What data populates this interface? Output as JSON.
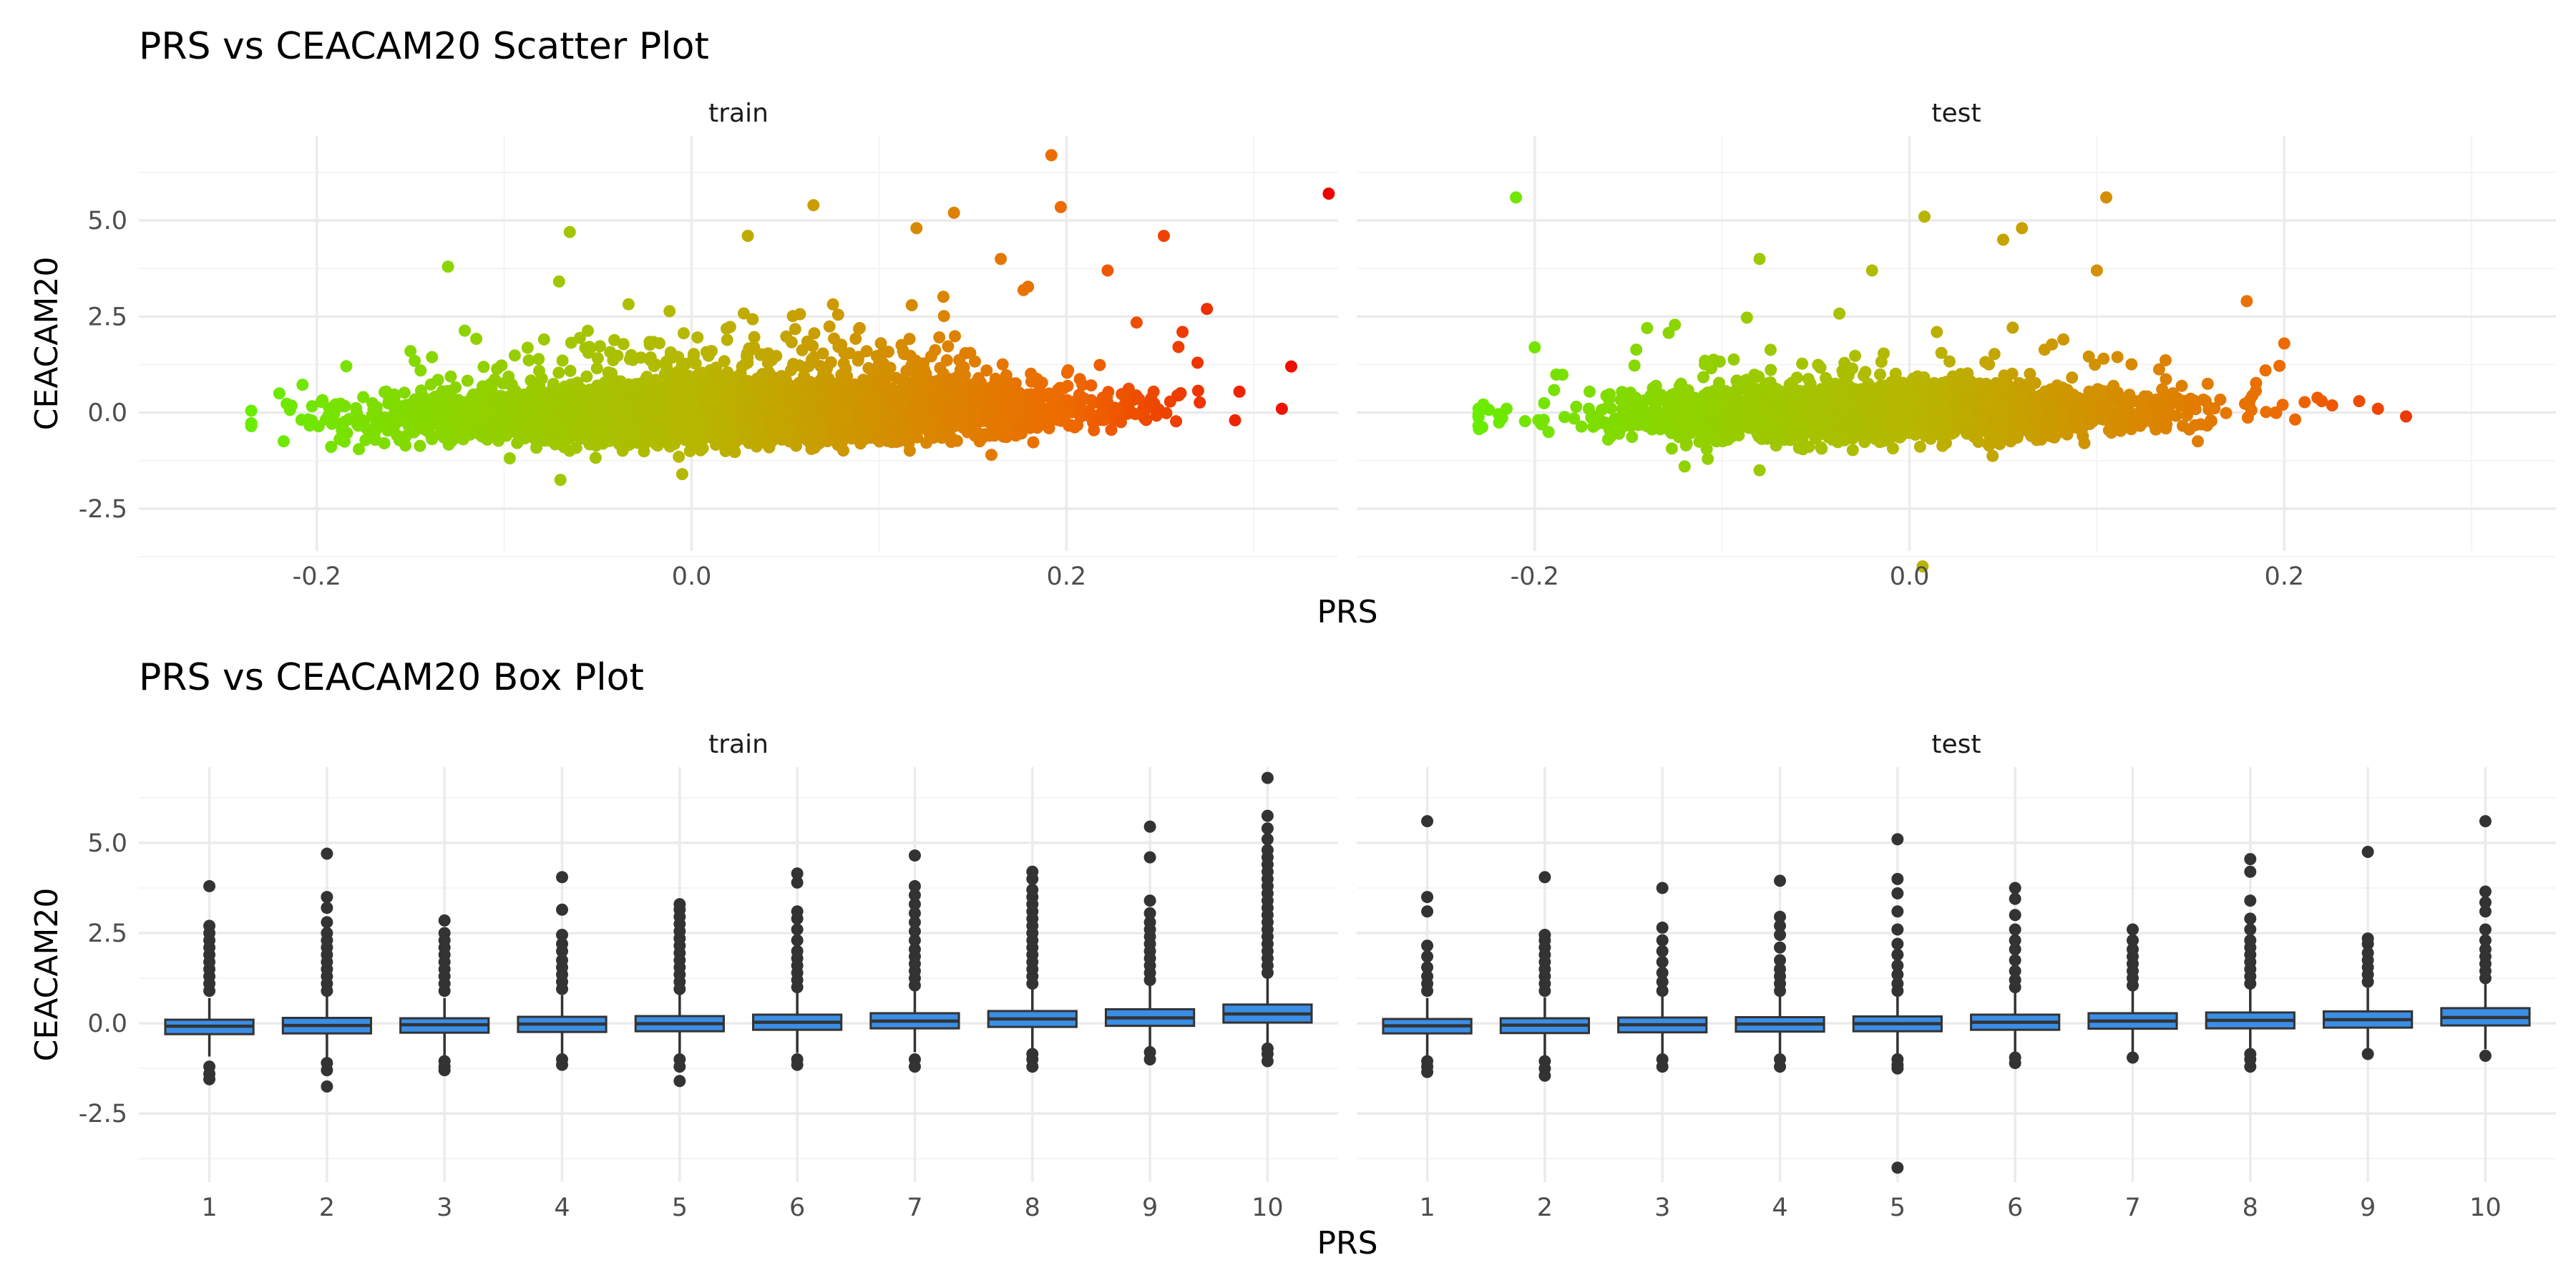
{
  "colors": {
    "grid_major": "#ebebeb",
    "grid_minor": "#f4f4f4",
    "gradient_low": "#66ee00",
    "gradient_mid": "#b7b700",
    "gradient_high": "#ee6a00",
    "gradient_max": "#ee0000",
    "box_fill": "#3a8ee6",
    "box_line": "#333333",
    "outlier": "#333333"
  },
  "chart_data": [
    {
      "type": "scatter",
      "title": "PRS vs CEACAM20 Scatter Plot",
      "xlabel": "PRS",
      "ylabel": "CEACAM20",
      "xlim": [
        -0.295,
        0.345
      ],
      "ylim": [
        -3.6,
        7.2
      ],
      "x_ticks": [
        -0.2,
        0.0,
        0.2
      ],
      "x_tick_labels": [
        "-0.2",
        "0.0",
        "0.2"
      ],
      "y_ticks": [
        -2.5,
        0.0,
        2.5,
        5.0
      ],
      "y_tick_labels": [
        "-2.5",
        "0.0",
        "2.5",
        "5.0"
      ],
      "grid": true,
      "color_encoding": "gradient by PRS (green → yellow → orange → red)",
      "facets": [
        {
          "label": "train",
          "n_points_approx": 8000,
          "x_range": [
            -0.235,
            0.34
          ],
          "y_center_slope": 2.2,
          "y_spread": 0.32,
          "highlight_points": [
            {
              "x": -0.235,
              "y": -0.35
            },
            {
              "x": -0.22,
              "y": 0.5
            },
            {
              "x": -0.15,
              "y": 1.6
            },
            {
              "x": -0.13,
              "y": 3.8
            },
            {
              "x": -0.065,
              "y": 4.7
            },
            {
              "x": -0.07,
              "y": -1.75
            },
            {
              "x": -0.005,
              "y": -1.6
            },
            {
              "x": 0.03,
              "y": 4.6
            },
            {
              "x": 0.065,
              "y": 5.4
            },
            {
              "x": 0.12,
              "y": 4.8
            },
            {
              "x": 0.14,
              "y": 5.2
            },
            {
              "x": 0.165,
              "y": 4.0
            },
            {
              "x": 0.192,
              "y": 6.7
            },
            {
              "x": 0.197,
              "y": 5.35
            },
            {
              "x": 0.222,
              "y": 3.7
            },
            {
              "x": 0.252,
              "y": 4.6
            },
            {
              "x": 0.262,
              "y": 2.1
            },
            {
              "x": 0.27,
              "y": 1.3
            },
            {
              "x": 0.275,
              "y": 2.7
            },
            {
              "x": 0.29,
              "y": -0.2
            },
            {
              "x": 0.315,
              "y": 0.1
            },
            {
              "x": 0.34,
              "y": 5.7
            },
            {
              "x": 0.16,
              "y": -1.1
            },
            {
              "x": 0.235,
              "y": 0.0
            }
          ]
        },
        {
          "label": "test",
          "n_points_approx": 2600,
          "x_range": [
            -0.23,
            0.27
          ],
          "y_center_slope": 1.5,
          "y_spread": 0.33,
          "highlight_points": [
            {
              "x": -0.23,
              "y": 0.1
            },
            {
              "x": -0.215,
              "y": 0.1
            },
            {
              "x": -0.21,
              "y": 5.6
            },
            {
              "x": -0.2,
              "y": 1.7
            },
            {
              "x": -0.14,
              "y": 2.2
            },
            {
              "x": -0.12,
              "y": -1.4
            },
            {
              "x": -0.08,
              "y": 4.0
            },
            {
              "x": -0.08,
              "y": -1.5
            },
            {
              "x": -0.02,
              "y": 3.7
            },
            {
              "x": 0.008,
              "y": 5.1
            },
            {
              "x": 0.007,
              "y": -4.0
            },
            {
              "x": 0.05,
              "y": 4.5
            },
            {
              "x": 0.06,
              "y": 4.8
            },
            {
              "x": 0.105,
              "y": 5.6
            },
            {
              "x": 0.1,
              "y": 3.7
            },
            {
              "x": 0.18,
              "y": 2.9
            },
            {
              "x": 0.19,
              "y": 1.1
            },
            {
              "x": 0.22,
              "y": 0.3
            },
            {
              "x": 0.24,
              "y": 0.3
            },
            {
              "x": 0.25,
              "y": 0.1
            },
            {
              "x": 0.265,
              "y": -0.1
            },
            {
              "x": 0.2,
              "y": 1.8
            }
          ]
        }
      ]
    },
    {
      "type": "box",
      "title": "PRS vs CEACAM20 Box Plot",
      "xlabel": "PRS",
      "ylabel": "CEACAM20",
      "ylim": [
        -4.4,
        7.1
      ],
      "categories": [
        "1",
        "2",
        "3",
        "4",
        "5",
        "6",
        "7",
        "8",
        "9",
        "10"
      ],
      "y_ticks": [
        -2.5,
        0.0,
        2.5,
        5.0
      ],
      "y_tick_labels": [
        "-2.5",
        "0.0",
        "2.5",
        "5.0"
      ],
      "grid": true,
      "facets": [
        {
          "label": "train",
          "boxes": [
            {
              "q1": -0.3,
              "median": -0.08,
              "q3": 0.1,
              "lower_whisker": -0.92,
              "upper_whisker": 0.7,
              "outliers": [
                -1.2,
                -1.4,
                -1.55,
                0.9,
                1.1,
                1.3,
                1.5,
                1.7,
                1.9,
                2.1,
                2.3,
                2.5,
                2.7,
                3.8
              ]
            },
            {
              "q1": -0.28,
              "median": -0.06,
              "q3": 0.15,
              "lower_whisker": -0.95,
              "upper_whisker": 0.75,
              "outliers": [
                -1.1,
                -1.3,
                -1.75,
                0.9,
                1.1,
                1.3,
                1.5,
                1.7,
                1.9,
                2.1,
                2.3,
                2.5,
                2.8,
                3.2,
                3.5,
                4.7
              ]
            },
            {
              "q1": -0.26,
              "median": -0.04,
              "q3": 0.14,
              "lower_whisker": -0.9,
              "upper_whisker": 0.7,
              "outliers": [
                -1.05,
                -1.2,
                -1.3,
                0.9,
                1.1,
                1.3,
                1.5,
                1.7,
                1.9,
                2.1,
                2.3,
                2.5,
                2.85
              ]
            },
            {
              "q1": -0.24,
              "median": -0.02,
              "q3": 0.18,
              "lower_whisker": -0.88,
              "upper_whisker": 0.78,
              "outliers": [
                -1.0,
                -1.15,
                0.95,
                1.15,
                1.35,
                1.55,
                1.75,
                2.0,
                2.2,
                2.45,
                3.15,
                4.05
              ]
            },
            {
              "q1": -0.22,
              "median": -0.01,
              "q3": 0.2,
              "lower_whisker": -0.86,
              "upper_whisker": 0.8,
              "outliers": [
                -1.0,
                -1.2,
                -1.6,
                0.95,
                1.15,
                1.35,
                1.55,
                1.75,
                1.95,
                2.15,
                2.35,
                2.55,
                2.75,
                2.95,
                3.15,
                3.3
              ]
            },
            {
              "q1": -0.18,
              "median": 0.03,
              "q3": 0.24,
              "lower_whisker": -0.82,
              "upper_whisker": 0.86,
              "outliers": [
                -1.0,
                -1.15,
                1.0,
                1.2,
                1.4,
                1.6,
                1.8,
                2.0,
                2.3,
                2.6,
                2.9,
                3.1,
                3.9,
                4.15
              ]
            },
            {
              "q1": -0.14,
              "median": 0.06,
              "q3": 0.28,
              "lower_whisker": -0.8,
              "upper_whisker": 0.9,
              "outliers": [
                -1.0,
                -1.2,
                1.05,
                1.25,
                1.45,
                1.65,
                1.85,
                2.05,
                2.3,
                2.55,
                2.8,
                3.05,
                3.3,
                3.55,
                3.8,
                4.65
              ]
            },
            {
              "q1": -0.1,
              "median": 0.12,
              "q3": 0.34,
              "lower_whisker": -0.75,
              "upper_whisker": 0.98,
              "outliers": [
                -0.85,
                -1.0,
                -1.2,
                1.1,
                1.3,
                1.5,
                1.7,
                1.9,
                2.1,
                2.3,
                2.5,
                2.7,
                2.9,
                3.1,
                3.3,
                3.5,
                3.7,
                4.0,
                4.2
              ]
            },
            {
              "q1": -0.07,
              "median": 0.15,
              "q3": 0.39,
              "lower_whisker": -0.72,
              "upper_whisker": 1.05,
              "outliers": [
                -0.8,
                -1.0,
                1.2,
                1.4,
                1.6,
                1.8,
                2.0,
                2.2,
                2.4,
                2.6,
                2.8,
                3.05,
                3.4,
                4.6,
                5.45
              ]
            },
            {
              "q1": 0.02,
              "median": 0.26,
              "q3": 0.52,
              "lower_whisker": -0.68,
              "upper_whisker": 1.25,
              "outliers": [
                -0.7,
                -0.85,
                -1.05,
                1.4,
                1.6,
                1.8,
                2.0,
                2.2,
                2.4,
                2.6,
                2.8,
                3.0,
                3.2,
                3.4,
                3.6,
                3.8,
                4.0,
                4.2,
                4.4,
                4.6,
                4.8,
                5.1,
                5.4,
                5.75,
                6.8
              ]
            }
          ]
        },
        {
          "label": "test",
          "boxes": [
            {
              "q1": -0.28,
              "median": -0.07,
              "q3": 0.12,
              "lower_whisker": -0.9,
              "upper_whisker": 0.7,
              "outliers": [
                -1.05,
                -1.2,
                -1.35,
                0.9,
                1.1,
                1.3,
                1.55,
                1.85,
                2.15,
                3.1,
                3.5,
                5.6
              ]
            },
            {
              "q1": -0.27,
              "median": -0.05,
              "q3": 0.14,
              "lower_whisker": -0.9,
              "upper_whisker": 0.72,
              "outliers": [
                -1.05,
                -1.25,
                -1.45,
                0.9,
                1.1,
                1.3,
                1.5,
                1.7,
                1.9,
                2.1,
                2.3,
                2.45,
                4.05
              ]
            },
            {
              "q1": -0.25,
              "median": -0.04,
              "q3": 0.16,
              "lower_whisker": -0.88,
              "upper_whisker": 0.74,
              "outliers": [
                -1.0,
                -1.2,
                0.9,
                1.15,
                1.4,
                1.7,
                2.0,
                2.3,
                2.65,
                3.75
              ]
            },
            {
              "q1": -0.23,
              "median": -0.02,
              "q3": 0.17,
              "lower_whisker": -0.86,
              "upper_whisker": 0.75,
              "outliers": [
                -1.0,
                -1.2,
                0.9,
                1.1,
                1.3,
                1.5,
                1.75,
                2.1,
                2.45,
                2.7,
                2.95,
                3.95
              ]
            },
            {
              "q1": -0.22,
              "median": -0.01,
              "q3": 0.19,
              "lower_whisker": -0.85,
              "upper_whisker": 0.78,
              "outliers": [
                -1.0,
                -1.15,
                -1.25,
                -4.0,
                0.9,
                1.1,
                1.35,
                1.6,
                1.9,
                2.2,
                2.6,
                3.1,
                3.6,
                4.0,
                5.1
              ]
            },
            {
              "q1": -0.18,
              "median": 0.03,
              "q3": 0.24,
              "lower_whisker": -0.82,
              "upper_whisker": 0.85,
              "outliers": [
                -0.95,
                -1.1,
                1.0,
                1.2,
                1.45,
                1.75,
                2.05,
                2.3,
                2.6,
                3.0,
                3.45,
                3.75
              ]
            },
            {
              "q1": -0.15,
              "median": 0.06,
              "q3": 0.28,
              "lower_whisker": -0.8,
              "upper_whisker": 0.92,
              "outliers": [
                -0.95,
                1.05,
                1.25,
                1.45,
                1.65,
                1.85,
                2.05,
                2.3,
                2.6
              ]
            },
            {
              "q1": -0.14,
              "median": 0.08,
              "q3": 0.3,
              "lower_whisker": -0.78,
              "upper_whisker": 0.95,
              "outliers": [
                -0.85,
                -1.0,
                -1.2,
                1.1,
                1.3,
                1.5,
                1.7,
                1.9,
                2.1,
                2.3,
                2.6,
                2.9,
                3.4,
                4.2,
                4.55
              ]
            },
            {
              "q1": -0.12,
              "median": 0.1,
              "q3": 0.33,
              "lower_whisker": -0.76,
              "upper_whisker": 0.98,
              "outliers": [
                -0.85,
                1.15,
                1.35,
                1.55,
                1.75,
                1.95,
                2.2,
                2.35,
                4.75
              ]
            },
            {
              "q1": -0.06,
              "median": 0.16,
              "q3": 0.42,
              "lower_whisker": -0.72,
              "upper_whisker": 1.08,
              "outliers": [
                -0.9,
                1.25,
                1.45,
                1.65,
                1.85,
                2.05,
                2.3,
                2.6,
                3.1,
                3.35,
                3.65,
                5.6
              ]
            }
          ]
        }
      ]
    }
  ]
}
